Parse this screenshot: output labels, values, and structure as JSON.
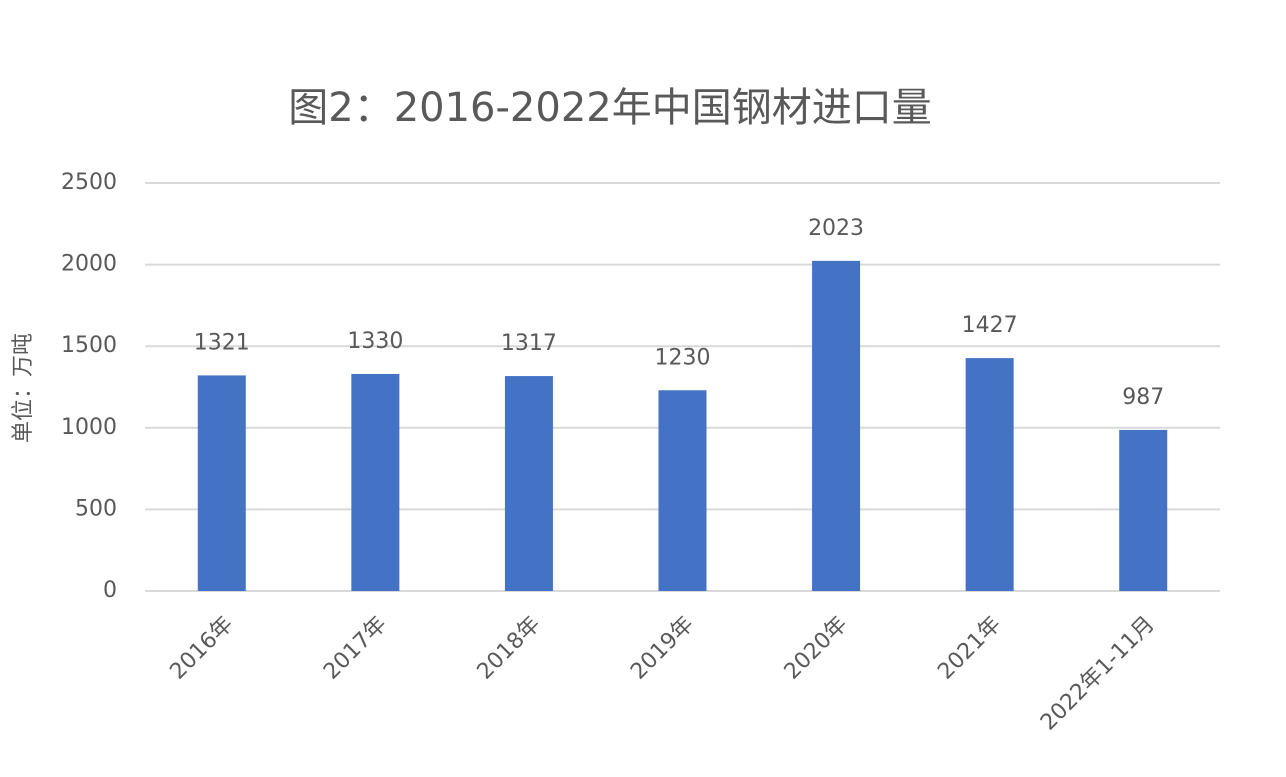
{
  "chart_data": {
    "type": "bar",
    "title": "图2：2016-2022年中国钢材进口量",
    "y_label": "单位：万吨",
    "categories": [
      "2016年",
      "2017年",
      "2018年",
      "2019年",
      "2020年",
      "2021年",
      "2022年1-11月"
    ],
    "values": [
      1321,
      1330,
      1317,
      1230,
      2023,
      1427,
      987
    ],
    "color": "#4472c4",
    "ylim": [
      0,
      2500
    ],
    "yticks": [
      0,
      500,
      1000,
      1500,
      2000,
      2500
    ],
    "grid": true,
    "data_labels": true
  }
}
